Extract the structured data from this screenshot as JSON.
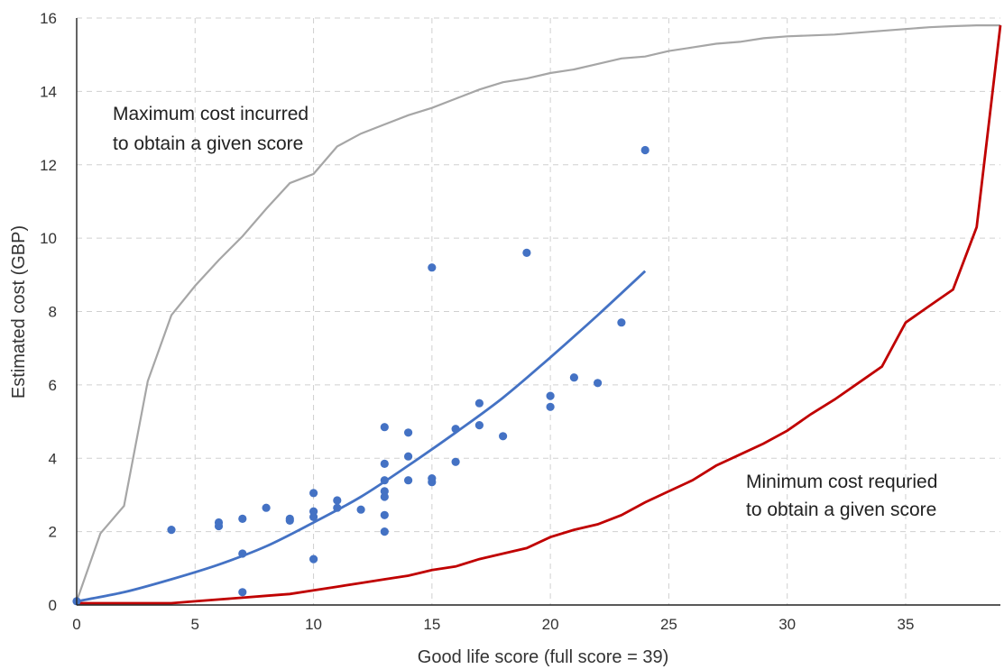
{
  "chart_data": {
    "type": "scatter",
    "xlabel": "Good life score (full score = 39)",
    "ylabel": "Estimated cost (GBP)",
    "xlim": [
      0,
      39
    ],
    "ylim": [
      0,
      16
    ],
    "x_ticks": [
      0,
      5,
      10,
      15,
      20,
      25,
      30,
      35
    ],
    "y_ticks": [
      0,
      2,
      4,
      6,
      8,
      10,
      12,
      14,
      16
    ],
    "grid": true,
    "annotations": [
      {
        "lines": [
          "Maximum cost incurred",
          "to obtain a given score"
        ]
      },
      {
        "lines": [
          "Minimum cost requried",
          "to obtain a given score"
        ]
      }
    ],
    "colors": {
      "points": "#4472c4",
      "trend": "#4472c4",
      "max": "#a6a6a6",
      "min": "#c00000"
    },
    "series": [
      {
        "kind": "scatter",
        "points": [
          [
            0,
            0.1
          ],
          [
            4,
            2.05
          ],
          [
            6,
            2.25
          ],
          [
            6,
            2.15
          ],
          [
            7,
            2.35
          ],
          [
            7,
            1.4
          ],
          [
            7,
            0.35
          ],
          [
            8,
            2.65
          ],
          [
            9,
            2.35
          ],
          [
            9,
            2.3
          ],
          [
            10,
            3.05
          ],
          [
            10,
            2.55
          ],
          [
            10,
            2.4
          ],
          [
            10,
            1.25
          ],
          [
            11,
            2.85
          ],
          [
            11,
            2.65
          ],
          [
            12,
            2.6
          ],
          [
            13,
            4.85
          ],
          [
            13,
            3.85
          ],
          [
            13,
            3.4
          ],
          [
            13,
            3.1
          ],
          [
            13,
            2.95
          ],
          [
            13,
            2.45
          ],
          [
            13,
            2.0
          ],
          [
            14,
            4.7
          ],
          [
            14,
            4.05
          ],
          [
            14,
            3.4
          ],
          [
            15,
            9.2
          ],
          [
            15,
            3.45
          ],
          [
            15,
            3.35
          ],
          [
            16,
            4.8
          ],
          [
            16,
            3.9
          ],
          [
            17,
            5.5
          ],
          [
            17,
            4.9
          ],
          [
            18,
            4.6
          ],
          [
            19,
            9.6
          ],
          [
            20,
            5.7
          ],
          [
            20,
            5.4
          ],
          [
            21,
            6.2
          ],
          [
            22,
            6.05
          ],
          [
            23,
            7.7
          ],
          [
            24,
            12.4
          ]
        ]
      },
      {
        "kind": "trend",
        "points": [
          [
            0,
            0.1
          ],
          [
            2,
            0.35
          ],
          [
            4,
            0.7
          ],
          [
            6,
            1.1
          ],
          [
            8,
            1.6
          ],
          [
            10,
            2.25
          ],
          [
            12,
            2.95
          ],
          [
            14,
            3.8
          ],
          [
            16,
            4.7
          ],
          [
            18,
            5.65
          ],
          [
            20,
            6.75
          ],
          [
            22,
            7.9
          ],
          [
            24,
            9.1
          ]
        ]
      },
      {
        "kind": "max",
        "points": [
          [
            0,
            0.1
          ],
          [
            1,
            1.95
          ],
          [
            2,
            2.7
          ],
          [
            3,
            6.1
          ],
          [
            4,
            7.9
          ],
          [
            5,
            8.7
          ],
          [
            6,
            9.4
          ],
          [
            7,
            10.05
          ],
          [
            8,
            10.8
          ],
          [
            9,
            11.5
          ],
          [
            10,
            11.75
          ],
          [
            11,
            12.5
          ],
          [
            12,
            12.85
          ],
          [
            13,
            13.1
          ],
          [
            14,
            13.35
          ],
          [
            15,
            13.55
          ],
          [
            16,
            13.8
          ],
          [
            17,
            14.05
          ],
          [
            18,
            14.25
          ],
          [
            19,
            14.35
          ],
          [
            20,
            14.5
          ],
          [
            21,
            14.6
          ],
          [
            22,
            14.75
          ],
          [
            23,
            14.9
          ],
          [
            24,
            14.95
          ],
          [
            25,
            15.1
          ],
          [
            26,
            15.2
          ],
          [
            27,
            15.3
          ],
          [
            28,
            15.35
          ],
          [
            29,
            15.45
          ],
          [
            30,
            15.5
          ],
          [
            32,
            15.55
          ],
          [
            34,
            15.65
          ],
          [
            36,
            15.75
          ],
          [
            37,
            15.78
          ],
          [
            38,
            15.8
          ],
          [
            39,
            15.8
          ]
        ]
      },
      {
        "kind": "min",
        "points": [
          [
            0,
            0.05
          ],
          [
            4,
            0.05
          ],
          [
            5,
            0.1
          ],
          [
            6,
            0.15
          ],
          [
            7,
            0.2
          ],
          [
            8,
            0.25
          ],
          [
            9,
            0.3
          ],
          [
            10,
            0.4
          ],
          [
            11,
            0.5
          ],
          [
            12,
            0.6
          ],
          [
            13,
            0.7
          ],
          [
            14,
            0.8
          ],
          [
            15,
            0.95
          ],
          [
            16,
            1.05
          ],
          [
            17,
            1.25
          ],
          [
            18,
            1.4
          ],
          [
            19,
            1.55
          ],
          [
            20,
            1.85
          ],
          [
            21,
            2.05
          ],
          [
            22,
            2.2
          ],
          [
            23,
            2.45
          ],
          [
            24,
            2.8
          ],
          [
            25,
            3.1
          ],
          [
            26,
            3.4
          ],
          [
            27,
            3.8
          ],
          [
            28,
            4.1
          ],
          [
            29,
            4.4
          ],
          [
            30,
            4.75
          ],
          [
            31,
            5.2
          ],
          [
            32,
            5.6
          ],
          [
            33,
            6.05
          ],
          [
            34,
            6.5
          ],
          [
            35,
            7.7
          ],
          [
            36,
            8.15
          ],
          [
            37,
            8.6
          ],
          [
            38,
            10.3
          ],
          [
            39,
            15.8
          ]
        ]
      }
    ]
  }
}
